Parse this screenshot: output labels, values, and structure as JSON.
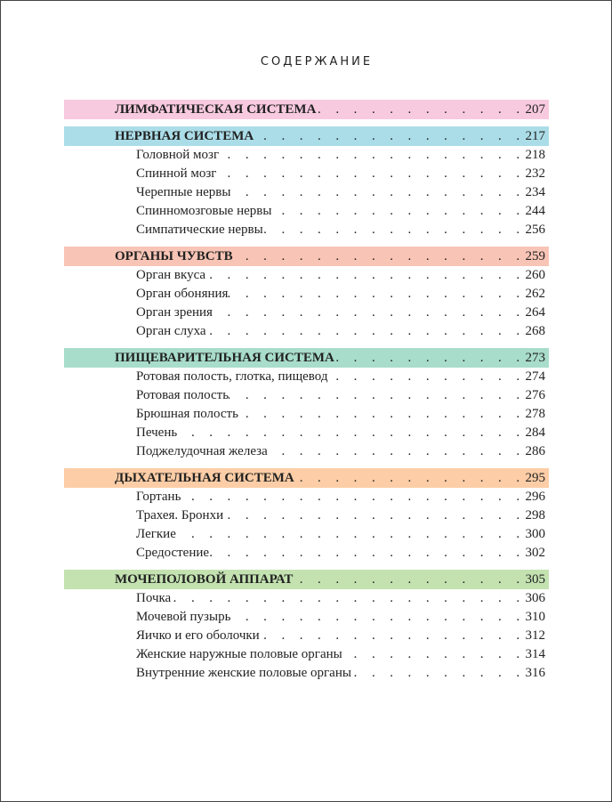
{
  "title": "СОДЕРЖАНИЕ",
  "sections": [
    {
      "label": "ЛИМФАТИЧЕСКАЯ СИСТЕМА",
      "page": "207",
      "color": "#f8cadf",
      "items": []
    },
    {
      "label": "НЕРВНАЯ СИСТЕМА",
      "page": "217",
      "color": "#abdde8",
      "items": [
        {
          "label": "Головной мозг",
          "page": "218"
        },
        {
          "label": "Спинной мозг",
          "page": "232"
        },
        {
          "label": "Черепные нервы",
          "page": "234"
        },
        {
          "label": "Спинномозговые нервы",
          "page": "244"
        },
        {
          "label": "Симпатические нервы",
          "page": "256"
        }
      ]
    },
    {
      "label": "ОРГАНЫ ЧУВСТВ",
      "page": "259",
      "color": "#f8c4b5",
      "items": [
        {
          "label": "Орган вкуса",
          "page": "260"
        },
        {
          "label": "Орган обоняния",
          "page": "262"
        },
        {
          "label": "Орган зрения",
          "page": "264"
        },
        {
          "label": "Орган слуха",
          "page": "268"
        }
      ]
    },
    {
      "label": "ПИЩЕВАРИТЕЛЬНАЯ СИСТЕМА",
      "page": "273",
      "color": "#a8dccb",
      "items": [
        {
          "label": "Ротовая полость, глотка, пищевод",
          "page": "274"
        },
        {
          "label": "Ротовая полость",
          "page": "276"
        },
        {
          "label": "Брюшная полость",
          "page": "278"
        },
        {
          "label": "Печень",
          "page": "284"
        },
        {
          "label": "Поджелудочная железа",
          "page": "286"
        }
      ]
    },
    {
      "label": "ДЫХАТЕЛЬНАЯ СИСТЕМА",
      "page": "295",
      "color": "#fccda6",
      "items": [
        {
          "label": "Гортань",
          "page": "296"
        },
        {
          "label": "Трахея. Бронхи",
          "page": "298"
        },
        {
          "label": "Легкие",
          "page": "300"
        },
        {
          "label": "Средостение",
          "page": "302"
        }
      ]
    },
    {
      "label": "МОЧЕПОЛОВОЙ АППАРАТ",
      "page": "305",
      "color": "#c3e2b0",
      "items": [
        {
          "label": "Почка",
          "page": "306"
        },
        {
          "label": "Мочевой пузырь",
          "page": "310"
        },
        {
          "label": "Яичко и его оболочки",
          "page": "312"
        },
        {
          "label": "Женские наружные половые органы",
          "page": "314"
        },
        {
          "label": "Внутренние женские половые органы",
          "page": "316"
        }
      ]
    }
  ]
}
